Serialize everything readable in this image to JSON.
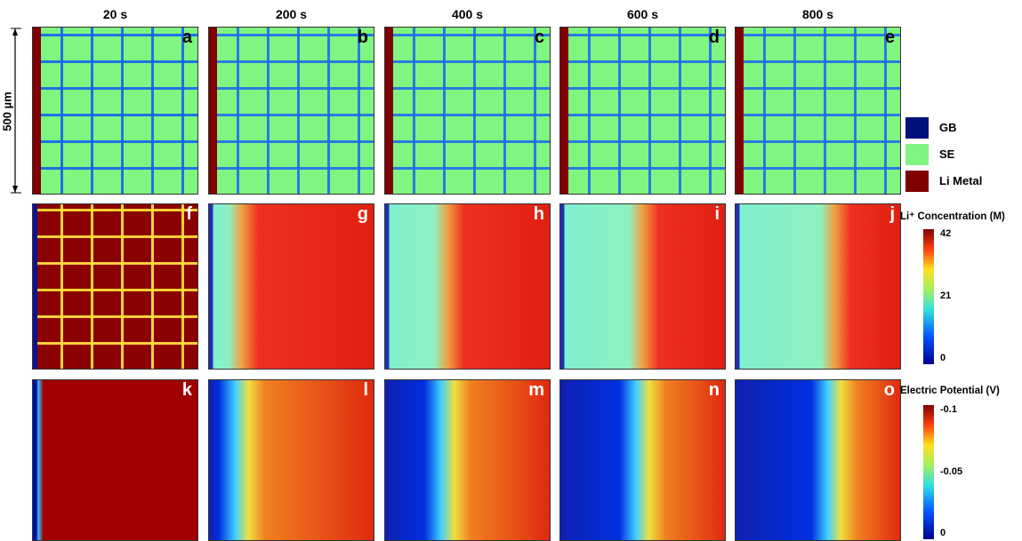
{
  "columns": [
    "20 s",
    "200 s",
    "400 s",
    "600 s",
    "800 s"
  ],
  "panels": [
    "a",
    "b",
    "c",
    "d",
    "e",
    "f",
    "g",
    "h",
    "i",
    "j",
    "k",
    "l",
    "m",
    "n",
    "o"
  ],
  "scale_bar": "500 µm",
  "legend": [
    {
      "label": "GB",
      "color": "#00107e"
    },
    {
      "label": "SE",
      "color": "#80f57f"
    },
    {
      "label": "Li Metal",
      "color": "#7f0000"
    }
  ],
  "colorbars": [
    {
      "title": "Li⁺ Concentration (M)",
      "ticks": [
        "42",
        "21",
        "0"
      ]
    },
    {
      "title": "Electric Potential (V)",
      "ticks": [
        "-0.1",
        "-0.05",
        "0"
      ]
    }
  ]
}
